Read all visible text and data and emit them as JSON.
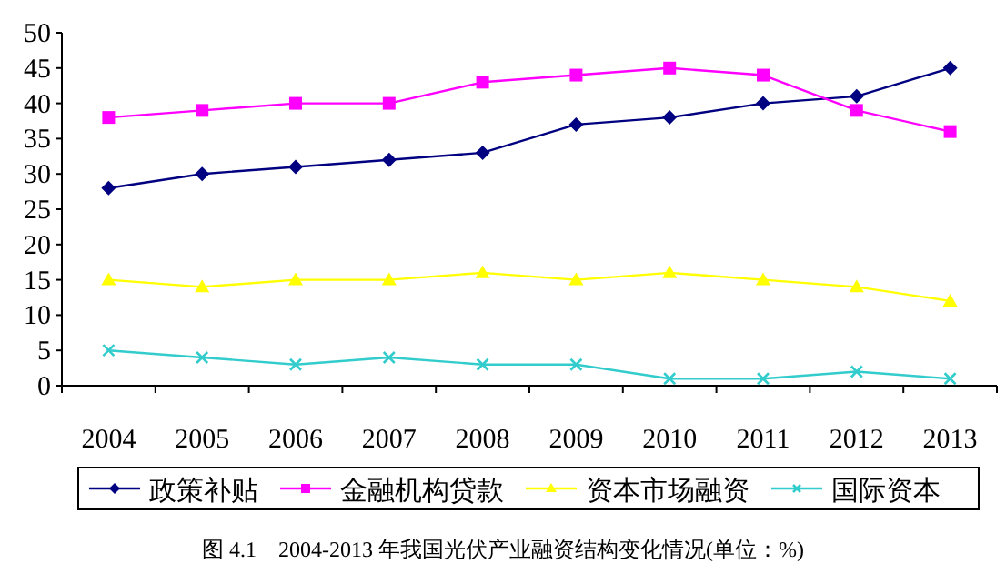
{
  "chart_data": {
    "type": "line",
    "categories": [
      "2004",
      "2005",
      "2006",
      "2007",
      "2008",
      "2009",
      "2010",
      "2011",
      "2012",
      "2013"
    ],
    "ylim": [
      0,
      50
    ],
    "yticks": [
      0,
      5,
      10,
      15,
      20,
      25,
      30,
      35,
      40,
      45,
      50
    ],
    "grid": false,
    "legend": "bottom",
    "line_style": "solid",
    "series": [
      {
        "name": "政策补贴",
        "color": "#000080",
        "marker": "diamond",
        "values": [
          28,
          30,
          31,
          32,
          33,
          37,
          38,
          40,
          41,
          45
        ]
      },
      {
        "name": "金融机构贷款",
        "color": "#ff00ff",
        "marker": "square",
        "values": [
          38,
          39,
          40,
          40,
          43,
          44,
          45,
          44,
          39,
          36
        ]
      },
      {
        "name": "资本市场融资",
        "color": "#ffff00",
        "marker": "triangle",
        "values": [
          15,
          14,
          15,
          15,
          16,
          15,
          16,
          15,
          14,
          12
        ]
      },
      {
        "name": "国际资本",
        "color": "#33cccc",
        "marker": "cross",
        "values": [
          5,
          4,
          3,
          4,
          3,
          3,
          1,
          1,
          2,
          1
        ]
      }
    ],
    "annotations": [
      "图 4.1　2004-2013 年我国光伏产业融资结构变化情况(单位：%)"
    ]
  }
}
